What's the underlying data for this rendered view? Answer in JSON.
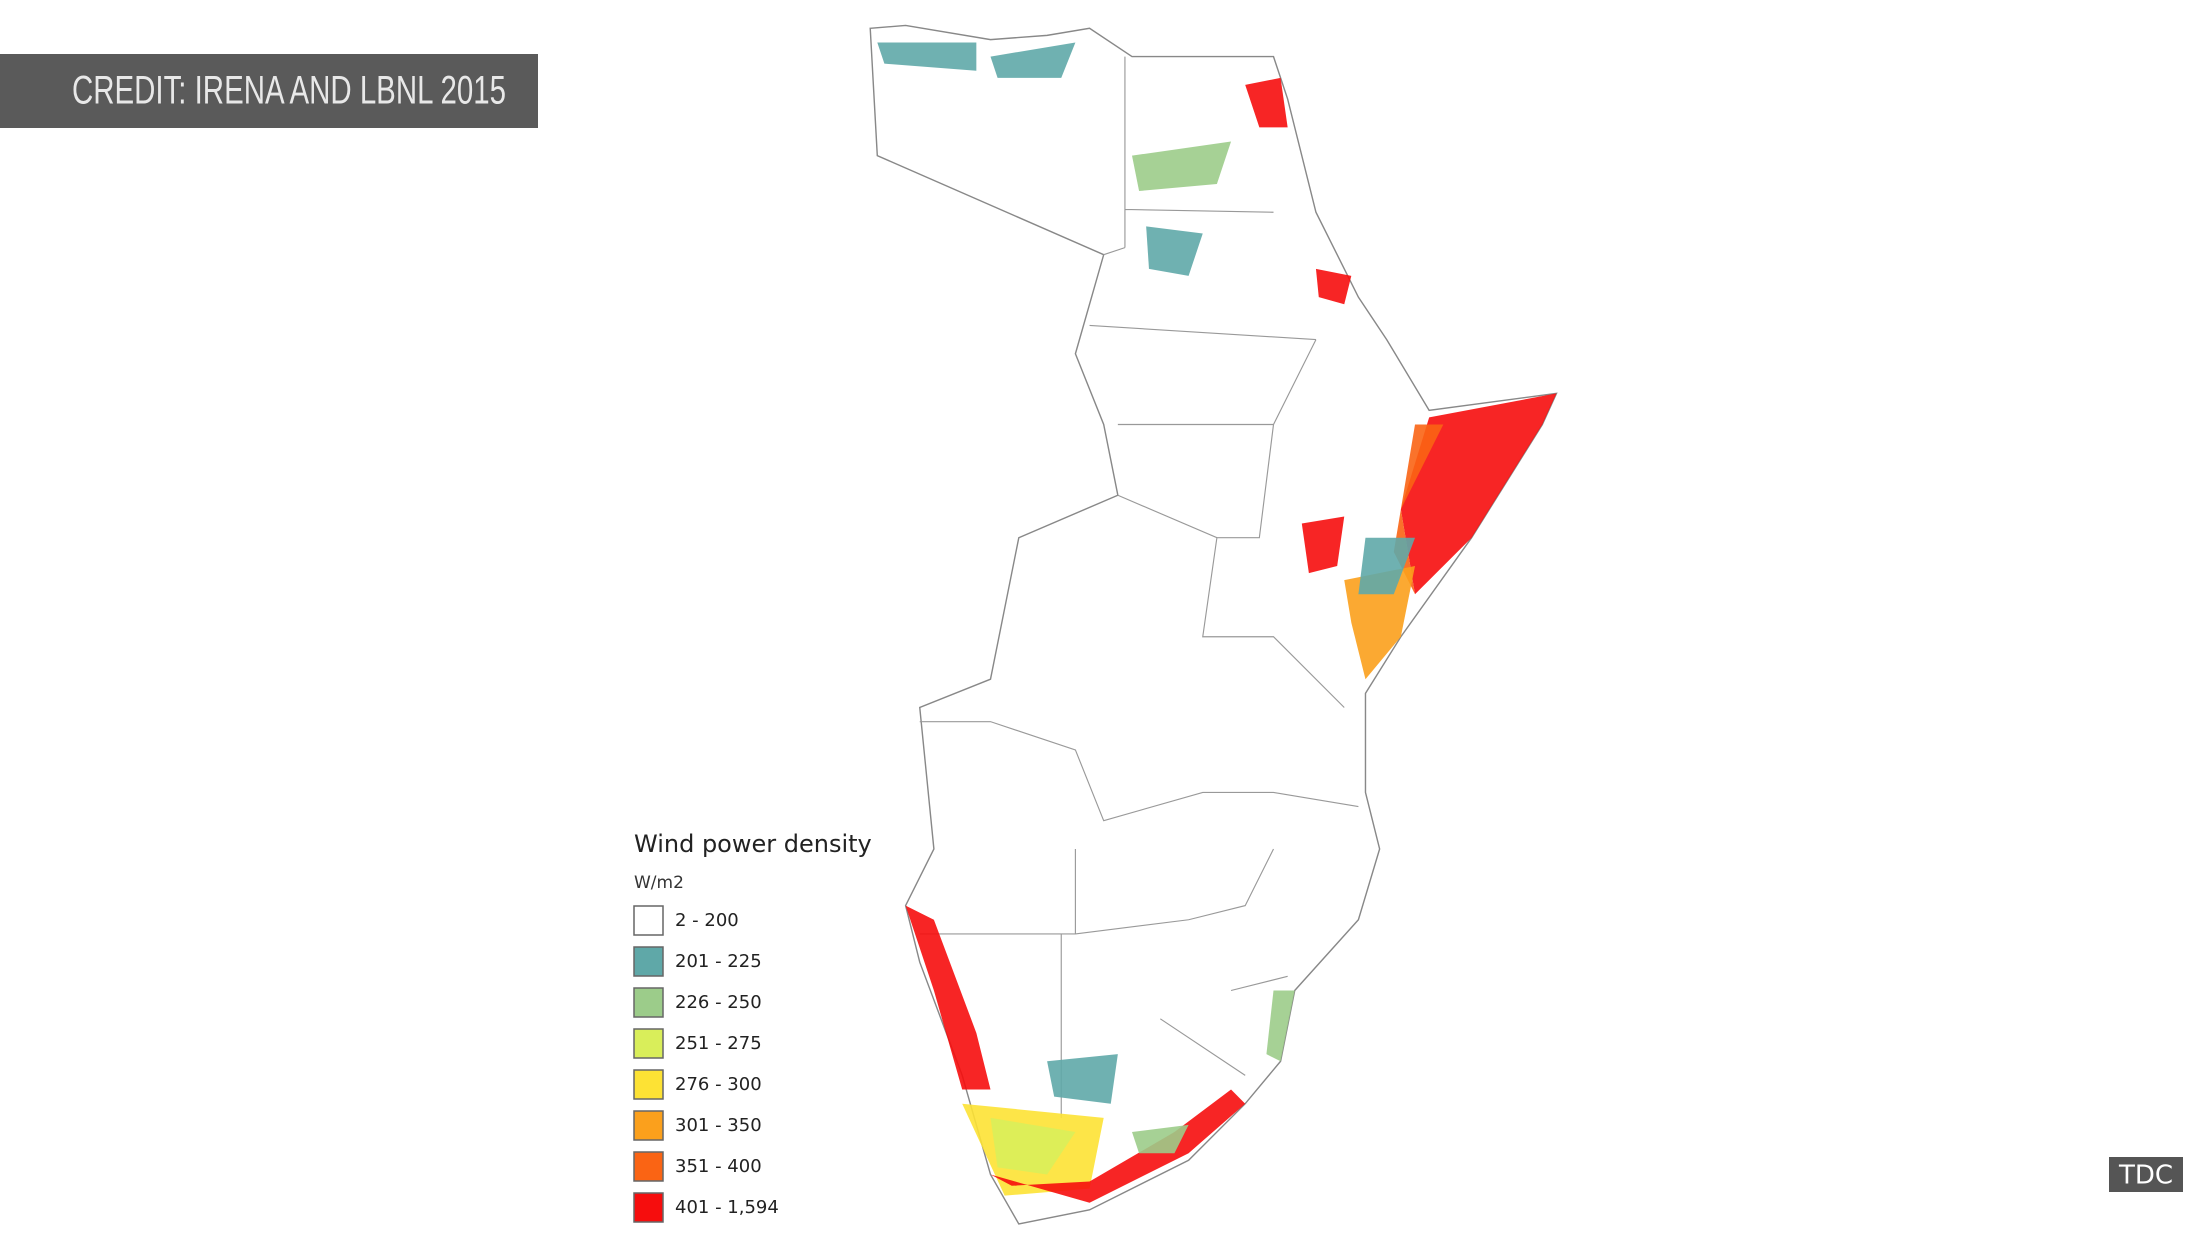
{
  "credit": "CREDIT: IRENA AND LBNL 2015",
  "legend": {
    "title": "Wind power density",
    "unit": "W/m2",
    "items": [
      {
        "label": "2 - 200",
        "color": "#ffffff"
      },
      {
        "label": "201 - 225",
        "color": "#5fa8a8"
      },
      {
        "label": "226 - 250",
        "color": "#9ccc8a"
      },
      {
        "label": "251 - 275",
        "color": "#d9ee5a"
      },
      {
        "label": "276 - 300",
        "color": "#fde234"
      },
      {
        "label": "301 - 350",
        "color": "#fba01c"
      },
      {
        "label": "351 - 400",
        "color": "#fa6414"
      },
      {
        "label": "401 - 1,594",
        "color": "#f60d0d"
      }
    ]
  },
  "watermark": "TDC"
}
